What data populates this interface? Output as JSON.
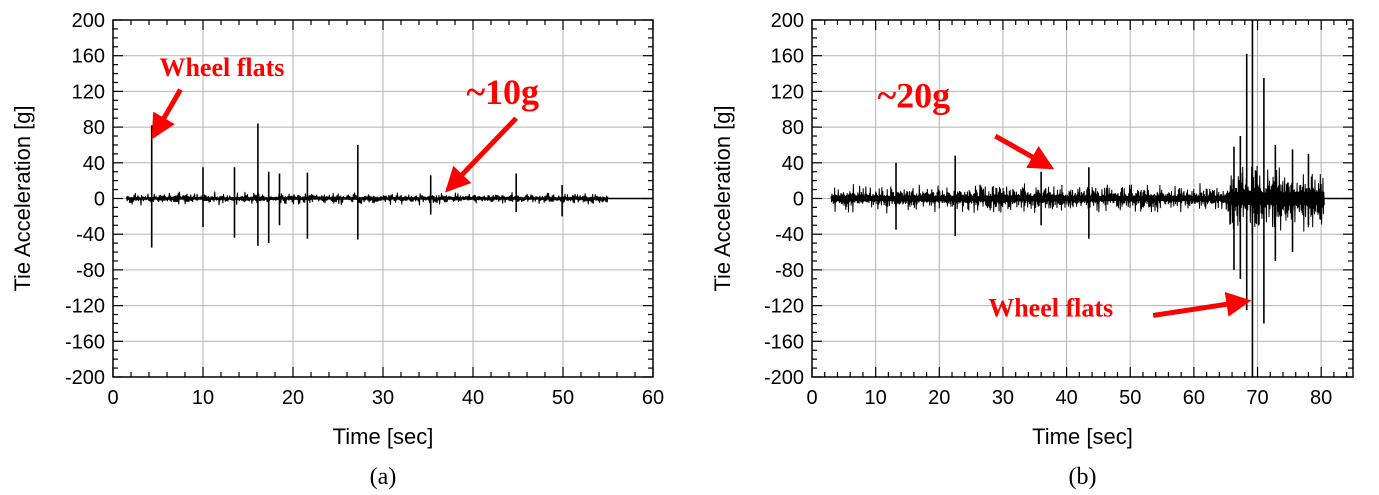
{
  "colors": {
    "trace": "#000000",
    "grid": "#b3b3b3",
    "annotation": "#ff0000",
    "frame": "#000000"
  },
  "chart_data": [
    {
      "panel_label": "(a)",
      "type": "line",
      "title": "",
      "xlabel": "Time [sec]",
      "ylabel": "Tie Acceleration [g]",
      "xlim": [
        0,
        60
      ],
      "ylim": [
        -200,
        200
      ],
      "x_ticks": [
        0,
        10,
        20,
        30,
        40,
        50,
        60
      ],
      "y_ticks": [
        200,
        160,
        120,
        80,
        40,
        0,
        -40,
        -80,
        -120,
        -160,
        -200
      ],
      "grid": true,
      "signal_range": [
        1.5,
        55
      ],
      "baseline_amplitude": 8,
      "spikes": [
        {
          "x": 4.3,
          "pos": 82,
          "neg": -55
        },
        {
          "x": 10.0,
          "pos": 35,
          "neg": -32
        },
        {
          "x": 13.5,
          "pos": 35,
          "neg": -44
        },
        {
          "x": 16.1,
          "pos": 84,
          "neg": -53
        },
        {
          "x": 17.3,
          "pos": 30,
          "neg": -50
        },
        {
          "x": 18.5,
          "pos": 28,
          "neg": -30
        },
        {
          "x": 21.6,
          "pos": 29,
          "neg": -45
        },
        {
          "x": 27.2,
          "pos": 60,
          "neg": -46
        },
        {
          "x": 35.3,
          "pos": 26,
          "neg": -18
        },
        {
          "x": 44.8,
          "pos": 28,
          "neg": -15
        },
        {
          "x": 49.9,
          "pos": 15,
          "neg": -20
        }
      ],
      "annotations": [
        {
          "text": "Wheel flats",
          "font_size": 26,
          "text_x": 12.1,
          "text_y": 137,
          "anchor": "middle",
          "arrow_from": [
            7.5,
            122
          ],
          "arrow_to": [
            4.5,
            70
          ]
        },
        {
          "text": "~10g",
          "font_size": 36,
          "text_x": 43.3,
          "text_y": 106,
          "anchor": "middle",
          "arrow_from": [
            44.8,
            90
          ],
          "arrow_to": [
            37.2,
            10
          ]
        }
      ]
    },
    {
      "panel_label": "(b)",
      "type": "line",
      "title": "",
      "xlabel": "Time [sec]",
      "ylabel": "Tie Acceleration [g]",
      "xlim": [
        0,
        85
      ],
      "ylim": [
        -200,
        200
      ],
      "x_ticks": [
        0,
        10,
        20,
        30,
        40,
        50,
        60,
        70,
        80
      ],
      "y_ticks": [
        200,
        160,
        120,
        80,
        40,
        0,
        -40,
        -80,
        -120,
        -160,
        -200
      ],
      "grid": true,
      "signal_range": [
        3,
        80.5
      ],
      "baseline_amplitude": 18,
      "burst_range": [
        65.5,
        80.5
      ],
      "burst_amplitude": 45,
      "spikes": [
        {
          "x": 13.2,
          "pos": 40,
          "neg": -35
        },
        {
          "x": 22.5,
          "pos": 48,
          "neg": -42
        },
        {
          "x": 36.0,
          "pos": 30,
          "neg": -30
        },
        {
          "x": 43.5,
          "pos": 35,
          "neg": -45
        },
        {
          "x": 66.3,
          "pos": 58,
          "neg": -80
        },
        {
          "x": 67.3,
          "pos": 70,
          "neg": -90
        },
        {
          "x": 68.3,
          "pos": 162,
          "neg": -125
        },
        {
          "x": 69.2,
          "pos": 200,
          "neg": -200
        },
        {
          "x": 71.0,
          "pos": 135,
          "neg": -140
        },
        {
          "x": 72.8,
          "pos": 60,
          "neg": -70
        },
        {
          "x": 75.5,
          "pos": 55,
          "neg": -60
        },
        {
          "x": 78.0,
          "pos": 50,
          "neg": -30
        }
      ],
      "annotations": [
        {
          "text": "~20g",
          "font_size": 36,
          "text_x": 16.0,
          "text_y": 102,
          "anchor": "middle",
          "arrow_from": [
            28.8,
            70
          ],
          "arrow_to": [
            37.5,
            35
          ]
        },
        {
          "text": "Wheel flats",
          "font_size": 26,
          "text_x": 37.5,
          "text_y": -132,
          "anchor": "middle",
          "arrow_from": [
            53.6,
            -131
          ],
          "arrow_to": [
            68.4,
            -115
          ]
        }
      ]
    }
  ]
}
